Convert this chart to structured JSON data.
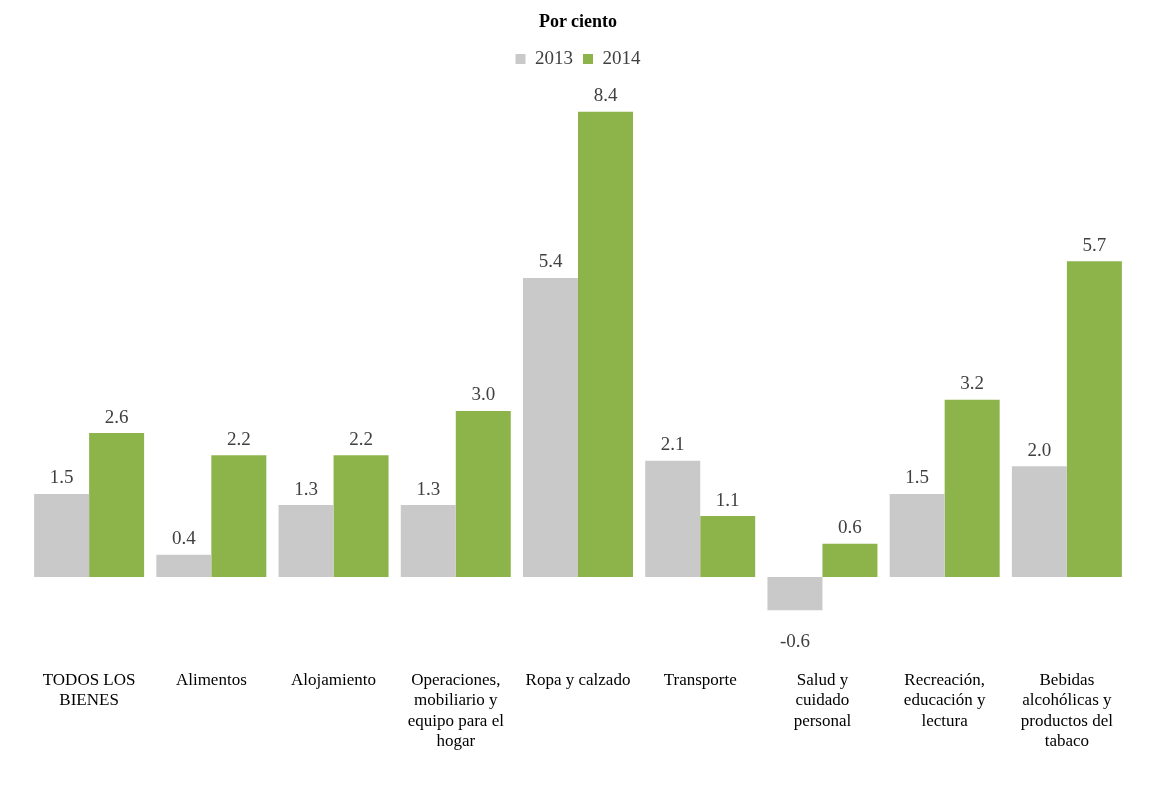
{
  "chart_data": {
    "type": "bar",
    "title": "Por ciento",
    "categories": [
      "TODOS LOS BIENES",
      "Alimentos",
      "Alojamiento",
      "Operaciones, mobiliario y equipo para el hogar",
      "Ropa y calzado",
      "Transporte",
      "Salud y cuidado personal",
      "Recreación, educación y lectura",
      "Bebidas alcohólicas y productos del tabaco"
    ],
    "series": [
      {
        "name": "2013",
        "color": "#c9c9c9",
        "values": [
          1.5,
          0.4,
          1.3,
          1.3,
          5.4,
          2.1,
          -0.6,
          1.5,
          2.0
        ],
        "value_labels": [
          "1.5",
          "0.4",
          "1.3",
          "1.3",
          "5.4",
          "2.1",
          "-0.6",
          "1.5",
          "2.0"
        ]
      },
      {
        "name": "2014",
        "color": "#8db44a",
        "values": [
          2.6,
          2.2,
          2.2,
          3.0,
          8.4,
          1.1,
          0.6,
          3.2,
          5.7
        ],
        "value_labels": [
          "2.6",
          "2.2",
          "2.2",
          "3.0",
          "8.4",
          "1.1",
          "0.6",
          "3.2",
          "5.7"
        ]
      }
    ],
    "legend": "top",
    "grid": false
  }
}
